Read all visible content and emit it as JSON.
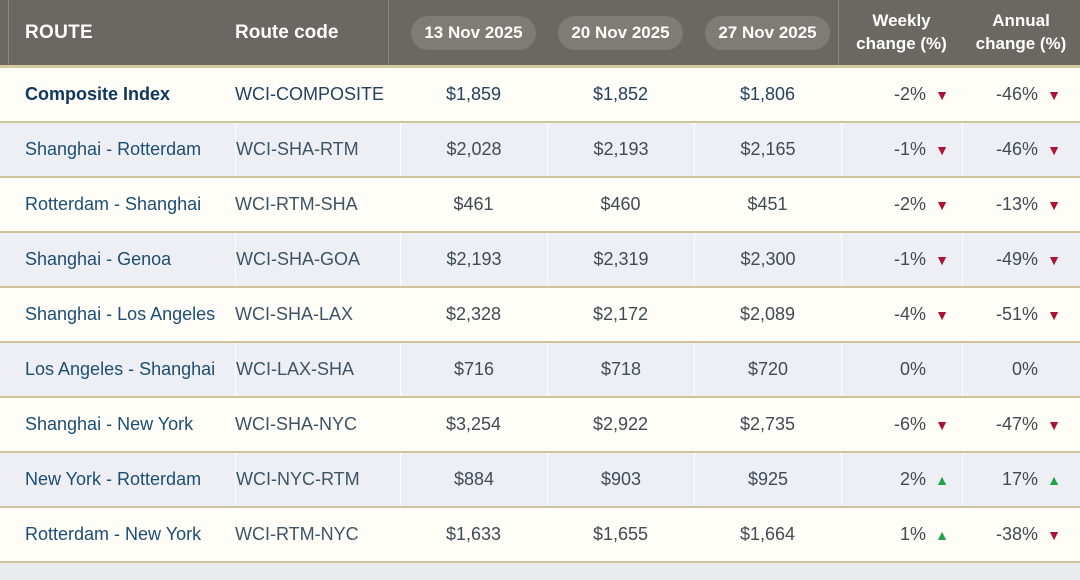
{
  "header": {
    "route": "ROUTE",
    "route_code": "Route code",
    "dates": [
      "13 Nov 2025",
      "20 Nov 2025",
      "27 Nov 2025"
    ],
    "weekly_line1": "Weekly",
    "weekly_line2": "change (%)",
    "annual_line1": "Annual",
    "annual_line2": "change (%)"
  },
  "rows": [
    {
      "route": "Composite Index",
      "code": "WCI-COMPOSITE",
      "values": [
        "$1,859",
        "$1,852",
        "$1,806"
      ],
      "weekly": "-2%",
      "weekly_dir": "down",
      "annual": "-46%",
      "annual_dir": "down",
      "emphasis": true
    },
    {
      "route": "Shanghai - Rotterdam",
      "code": "WCI-SHA-RTM",
      "values": [
        "$2,028",
        "$2,193",
        "$2,165"
      ],
      "weekly": "-1%",
      "weekly_dir": "down",
      "annual": "-46%",
      "annual_dir": "down",
      "emphasis": false
    },
    {
      "route": "Rotterdam - Shanghai",
      "code": "WCI-RTM-SHA",
      "values": [
        "$461",
        "$460",
        "$451"
      ],
      "weekly": "-2%",
      "weekly_dir": "down",
      "annual": "-13%",
      "annual_dir": "down",
      "emphasis": false
    },
    {
      "route": "Shanghai - Genoa",
      "code": "WCI-SHA-GOA",
      "values": [
        "$2,193",
        "$2,319",
        "$2,300"
      ],
      "weekly": "-1%",
      "weekly_dir": "down",
      "annual": "-49%",
      "annual_dir": "down",
      "emphasis": false
    },
    {
      "route": "Shanghai - Los Angeles",
      "code": "WCI-SHA-LAX",
      "values": [
        "$2,328",
        "$2,172",
        "$2,089"
      ],
      "weekly": "-4%",
      "weekly_dir": "down",
      "annual": "-51%",
      "annual_dir": "down",
      "emphasis": false
    },
    {
      "route": "Los Angeles - Shanghai",
      "code": "WCI-LAX-SHA",
      "values": [
        "$716",
        "$718",
        "$720"
      ],
      "weekly": "0%",
      "weekly_dir": "none",
      "annual": "0%",
      "annual_dir": "none",
      "emphasis": false
    },
    {
      "route": "Shanghai - New York",
      "code": "WCI-SHA-NYC",
      "values": [
        "$3,254",
        "$2,922",
        "$2,735"
      ],
      "weekly": "-6%",
      "weekly_dir": "down",
      "annual": "-47%",
      "annual_dir": "down",
      "emphasis": false
    },
    {
      "route": "New York - Rotterdam",
      "code": "WCI-NYC-RTM",
      "values": [
        "$884",
        "$903",
        "$925"
      ],
      "weekly": "2%",
      "weekly_dir": "up",
      "annual": "17%",
      "annual_dir": "up",
      "emphasis": false
    },
    {
      "route": "Rotterdam - New York",
      "code": "WCI-RTM-NYC",
      "values": [
        "$1,633",
        "$1,655",
        "$1,664"
      ],
      "weekly": "1%",
      "weekly_dir": "up",
      "annual": "-38%",
      "annual_dir": "down",
      "emphasis": false
    }
  ],
  "icons": {
    "down": "▼",
    "up": "▲",
    "none": ""
  },
  "colors": {
    "header_gray": "#6b6762",
    "pill_gray": "#7f7c76",
    "separator_gold": "#d0c399",
    "row_shaded": "#edeff4",
    "down_red": "#ab1233",
    "up_green": "#23a24d",
    "route_blue": "#1d4e73",
    "emphasis_navy": "#0f3760"
  }
}
